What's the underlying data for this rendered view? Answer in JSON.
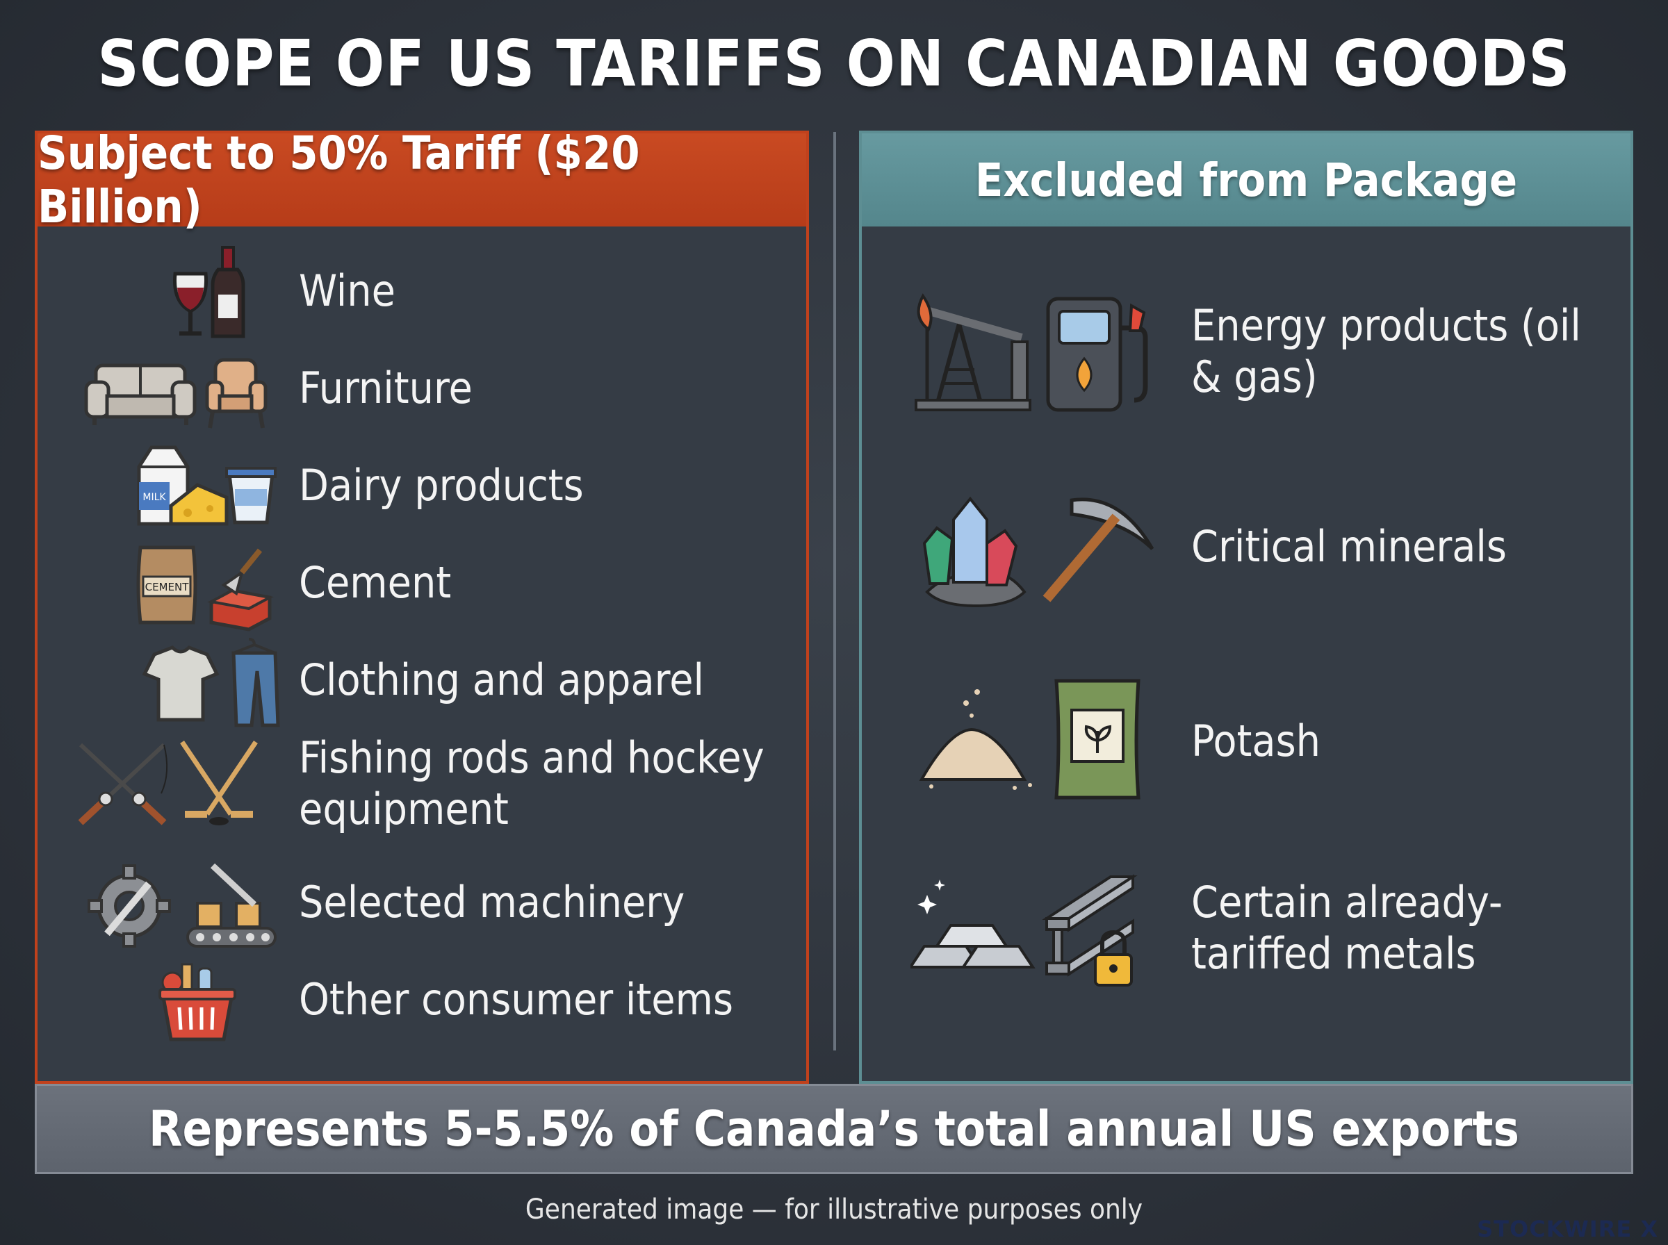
{
  "title": "SCOPE OF US TARIFFS ON CANADIAN GOODS",
  "left_panel": {
    "header": "Subject to 50% Tariff ($20 Billion)",
    "accent_color": "#c1411c",
    "items": [
      {
        "label": "Wine",
        "icons": [
          "wine-glass-icon",
          "wine-bottle-icon"
        ]
      },
      {
        "label": "Furniture",
        "icons": [
          "sofa-icon",
          "armchair-icon"
        ]
      },
      {
        "label": "Dairy products",
        "icons": [
          "milk-carton-icon",
          "cheese-icon",
          "yogurt-cup-icon"
        ]
      },
      {
        "label": "Cement",
        "icons": [
          "cement-bag-icon",
          "trowel-brick-icon"
        ],
        "icon_text": "CEMENT"
      },
      {
        "label": "Clothing and apparel",
        "icons": [
          "tshirt-icon",
          "jeans-icon"
        ]
      },
      {
        "label": "Fishing rods and hockey equipment",
        "icons": [
          "fishing-rods-icon",
          "hockey-sticks-icon"
        ]
      },
      {
        "label": "Selected machinery",
        "icons": [
          "gear-wrench-icon",
          "conveyor-icon"
        ]
      },
      {
        "label": "Other consumer items",
        "icons": [
          "shopping-basket-icon"
        ]
      }
    ]
  },
  "right_panel": {
    "header": "Excluded from Package",
    "accent_color": "#5d8e93",
    "items": [
      {
        "label": "Energy products (oil & gas)",
        "icons": [
          "oil-pump-jack-icon",
          "fuel-pump-icon"
        ]
      },
      {
        "label": "Critical minerals",
        "icons": [
          "crystals-icon",
          "pickaxe-icon"
        ]
      },
      {
        "label": "Potash",
        "icons": [
          "powder-pile-icon",
          "fertilizer-bag-icon"
        ]
      },
      {
        "label": "Certain already-tariffed metals",
        "icons": [
          "metal-ingots-icon",
          "steel-beam-lock-icon"
        ]
      }
    ]
  },
  "footer": "Represents 5-5.5% of Canada’s total annual US exports",
  "note": "Generated image — for illustrative purposes only",
  "watermark": "STOCKWIRE X"
}
